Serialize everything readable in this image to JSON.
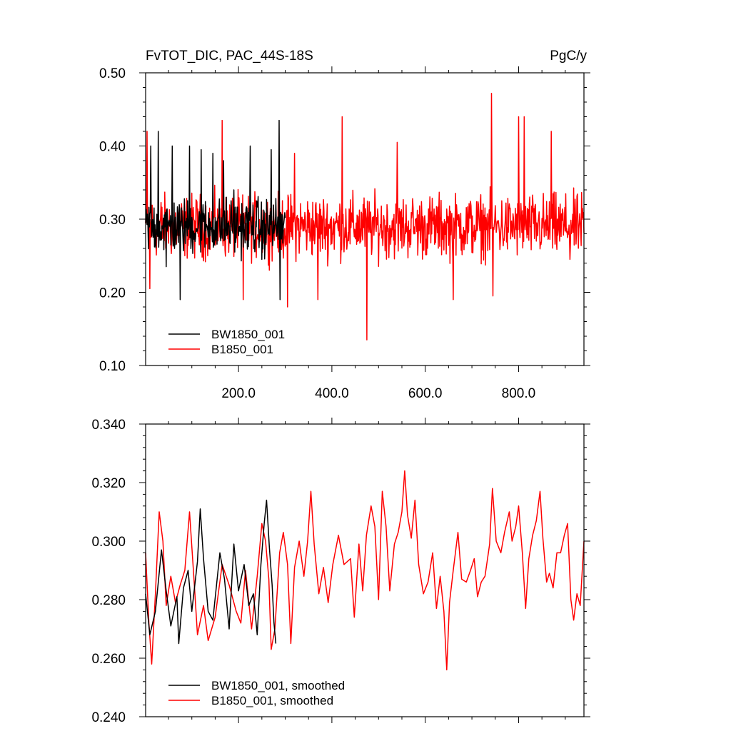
{
  "chart_data": [
    {
      "type": "line",
      "title": "FvTOT_DIC, PAC_44S-18S",
      "units": "PgC/y",
      "xlim": [
        1,
        940
      ],
      "ylim": [
        0.1,
        0.5
      ],
      "xticks": [
        200,
        400,
        600,
        800
      ],
      "xtick_labels": [
        "200.0",
        "400.0",
        "600.0",
        "800.0"
      ],
      "yticks": [
        0.1,
        0.2,
        0.3,
        0.4,
        0.5
      ],
      "ytick_labels": [
        "0.10",
        "0.20",
        "0.30",
        "0.40",
        "0.50"
      ],
      "legend_position": "bottom-left",
      "series": [
        {
          "name": "BW1850_001",
          "color": "#000000",
          "x": [
            1,
            300
          ],
          "mean": 0.29,
          "spread": 0.04,
          "min": 0.19,
          "max": 0.435,
          "spikes": [
            [
              12,
              0.4
            ],
            [
              28,
              0.42
            ],
            [
              45,
              0.235
            ],
            [
              58,
              0.4
            ],
            [
              75,
              0.19
            ],
            [
              95,
              0.4
            ],
            [
              120,
              0.395
            ],
            [
              145,
              0.39
            ],
            [
              168,
              0.38
            ],
            [
              190,
              0.34
            ],
            [
              225,
              0.4
            ],
            [
              250,
              0.245
            ],
            [
              270,
              0.395
            ],
            [
              287,
              0.435
            ],
            [
              289,
              0.19
            ]
          ]
        },
        {
          "name": "B1850_001",
          "color": "#ff0000",
          "x": [
            1,
            940
          ],
          "mean": 0.29,
          "spread": 0.045,
          "min": 0.135,
          "max": 0.472,
          "spikes": [
            [
              4,
              0.42
            ],
            [
              10,
              0.205
            ],
            [
              165,
              0.435
            ],
            [
              210,
              0.19
            ],
            [
              305,
              0.18
            ],
            [
              320,
              0.39
            ],
            [
              370,
              0.19
            ],
            [
              422,
              0.44
            ],
            [
              475,
              0.135
            ],
            [
              540,
              0.405
            ],
            [
              660,
              0.19
            ],
            [
              742,
              0.472
            ],
            [
              745,
              0.195
            ],
            [
              800,
              0.44
            ],
            [
              812,
              0.44
            ],
            [
              870,
              0.42
            ],
            [
              910,
              0.245
            ]
          ]
        }
      ]
    },
    {
      "type": "line",
      "title": "",
      "xlim": [
        1,
        940
      ],
      "ylim": [
        0.24,
        0.34
      ],
      "xticks": [
        200,
        400,
        600,
        800
      ],
      "xtick_labels": [],
      "yticks": [
        0.24,
        0.26,
        0.28,
        0.3,
        0.32,
        0.34
      ],
      "ytick_labels": [
        "0.240",
        "0.260",
        "0.280",
        "0.300",
        "0.320",
        "0.340"
      ],
      "legend_position": "bottom-left",
      "series": [
        {
          "name": "BW1850_001, smoothed",
          "color": "#000000",
          "x": [
            1,
            280
          ],
          "points": [
            [
              1,
              0.282
            ],
            [
              10,
              0.268
            ],
            [
              22,
              0.276
            ],
            [
              35,
              0.297
            ],
            [
              45,
              0.283
            ],
            [
              55,
              0.271
            ],
            [
              68,
              0.281
            ],
            [
              72,
              0.265
            ],
            [
              82,
              0.284
            ],
            [
              92,
              0.29
            ],
            [
              100,
              0.276
            ],
            [
              112,
              0.293
            ],
            [
              118,
              0.311
            ],
            [
              125,
              0.294
            ],
            [
              135,
              0.276
            ],
            [
              145,
              0.273
            ],
            [
              160,
              0.296
            ],
            [
              170,
              0.287
            ],
            [
              180,
              0.27
            ],
            [
              190,
              0.299
            ],
            [
              200,
              0.283
            ],
            [
              212,
              0.292
            ],
            [
              222,
              0.278
            ],
            [
              232,
              0.282
            ],
            [
              240,
              0.268
            ],
            [
              248,
              0.292
            ],
            [
              255,
              0.306
            ],
            [
              260,
              0.314
            ],
            [
              266,
              0.298
            ],
            [
              272,
              0.285
            ],
            [
              276,
              0.272
            ],
            [
              280,
              0.265
            ]
          ]
        },
        {
          "name": "B1850_001, smoothed",
          "color": "#ff0000",
          "x": [
            1,
            940
          ],
          "points": [
            [
              1,
              0.296
            ],
            [
              8,
              0.272
            ],
            [
              14,
              0.258
            ],
            [
              22,
              0.282
            ],
            [
              30,
              0.31
            ],
            [
              38,
              0.3
            ],
            [
              45,
              0.278
            ],
            [
              55,
              0.288
            ],
            [
              65,
              0.279
            ],
            [
              75,
              0.285
            ],
            [
              85,
              0.29
            ],
            [
              95,
              0.31
            ],
            [
              105,
              0.286
            ],
            [
              112,
              0.268
            ],
            [
              125,
              0.278
            ],
            [
              135,
              0.266
            ],
            [
              150,
              0.274
            ],
            [
              165,
              0.292
            ],
            [
              180,
              0.285
            ],
            [
              195,
              0.276
            ],
            [
              205,
              0.272
            ],
            [
              215,
              0.29
            ],
            [
              228,
              0.27
            ],
            [
              240,
              0.288
            ],
            [
              250,
              0.306
            ],
            [
              258,
              0.3
            ],
            [
              265,
              0.287
            ],
            [
              270,
              0.263
            ],
            [
              278,
              0.27
            ],
            [
              288,
              0.296
            ],
            [
              296,
              0.303
            ],
            [
              305,
              0.292
            ],
            [
              312,
              0.265
            ],
            [
              320,
              0.291
            ],
            [
              330,
              0.3
            ],
            [
              340,
              0.288
            ],
            [
              348,
              0.3
            ],
            [
              355,
              0.317
            ],
            [
              362,
              0.299
            ],
            [
              372,
              0.282
            ],
            [
              382,
              0.291
            ],
            [
              392,
              0.279
            ],
            [
              402,
              0.292
            ],
            [
              414,
              0.302
            ],
            [
              426,
              0.292
            ],
            [
              440,
              0.294
            ],
            [
              448,
              0.274
            ],
            [
              458,
              0.299
            ],
            [
              466,
              0.283
            ],
            [
              474,
              0.302
            ],
            [
              484,
              0.312
            ],
            [
              492,
              0.305
            ],
            [
              500,
              0.28
            ],
            [
              508,
              0.317
            ],
            [
              516,
              0.305
            ],
            [
              524,
              0.283
            ],
            [
              534,
              0.299
            ],
            [
              542,
              0.303
            ],
            [
              550,
              0.31
            ],
            [
              556,
              0.324
            ],
            [
              562,
              0.309
            ],
            [
              570,
              0.301
            ],
            [
              578,
              0.314
            ],
            [
              586,
              0.292
            ],
            [
              596,
              0.282
            ],
            [
              606,
              0.286
            ],
            [
              616,
              0.296
            ],
            [
              624,
              0.277
            ],
            [
              632,
              0.288
            ],
            [
              640,
              0.276
            ],
            [
              646,
              0.256
            ],
            [
              652,
              0.279
            ],
            [
              660,
              0.29
            ],
            [
              670,
              0.303
            ],
            [
              678,
              0.287
            ],
            [
              688,
              0.286
            ],
            [
              697,
              0.29
            ],
            [
              705,
              0.294
            ],
            [
              712,
              0.281
            ],
            [
              720,
              0.286
            ],
            [
              728,
              0.288
            ],
            [
              738,
              0.299
            ],
            [
              744,
              0.318
            ],
            [
              752,
              0.3
            ],
            [
              762,
              0.296
            ],
            [
              770,
              0.303
            ],
            [
              780,
              0.31
            ],
            [
              786,
              0.3
            ],
            [
              794,
              0.305
            ],
            [
              800,
              0.312
            ],
            [
              808,
              0.296
            ],
            [
              815,
              0.277
            ],
            [
              822,
              0.294
            ],
            [
              830,
              0.302
            ],
            [
              838,
              0.307
            ],
            [
              846,
              0.317
            ],
            [
              852,
              0.301
            ],
            [
              860,
              0.286
            ],
            [
              866,
              0.289
            ],
            [
              874,
              0.284
            ],
            [
              882,
              0.296
            ],
            [
              890,
              0.296
            ],
            [
              898,
              0.302
            ],
            [
              905,
              0.306
            ],
            [
              912,
              0.28
            ],
            [
              918,
              0.273
            ],
            [
              925,
              0.282
            ],
            [
              932,
              0.278
            ],
            [
              940,
              0.3
            ]
          ]
        }
      ]
    }
  ]
}
